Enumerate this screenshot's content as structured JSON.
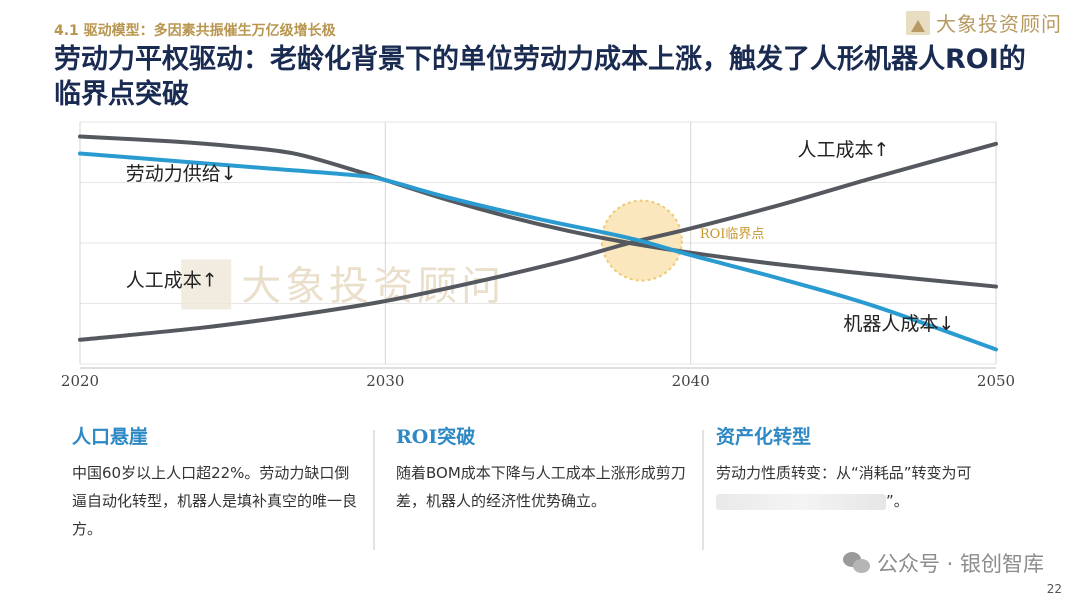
{
  "header": {
    "section_tag": "4.1 驱动模型：多因素共振催生万亿级增长极",
    "title": "劳动力平权驱动：老龄化背景下的单位劳动力成本上涨，触发了人形机器人ROI的临界点突破",
    "logo_text": "大象投资顾问"
  },
  "chart_data": {
    "type": "line",
    "xlim": [
      2020,
      2050
    ],
    "x_ticks": [
      "2020",
      "2030",
      "2040",
      "2050"
    ],
    "ylim": [
      0,
      100
    ],
    "grid": "horizontal",
    "watermark": "大象投资顾问",
    "series": [
      {
        "name": "劳动力供给↓",
        "color": "#55595f",
        "points": [
          [
            2020,
            94
          ],
          [
            2023,
            92
          ],
          [
            2025,
            90
          ],
          [
            2027,
            87
          ],
          [
            2029,
            80
          ],
          [
            2030,
            76
          ],
          [
            2032,
            68
          ],
          [
            2034,
            61
          ],
          [
            2036,
            55
          ],
          [
            2038,
            50
          ],
          [
            2040,
            46
          ],
          [
            2043,
            41
          ],
          [
            2046,
            37
          ],
          [
            2050,
            32
          ]
        ]
      },
      {
        "name": "人工成本↑",
        "color": "#55595f",
        "points": [
          [
            2020,
            10
          ],
          [
            2024,
            15
          ],
          [
            2027,
            20
          ],
          [
            2030,
            26
          ],
          [
            2033,
            34
          ],
          [
            2036,
            43
          ],
          [
            2038,
            50
          ],
          [
            2040,
            56
          ],
          [
            2043,
            66
          ],
          [
            2046,
            77
          ],
          [
            2050,
            91
          ]
        ]
      },
      {
        "name": "机器人成本↓",
        "color": "#2a9bd0",
        "points": [
          [
            2020,
            87
          ],
          [
            2023,
            84
          ],
          [
            2026,
            81
          ],
          [
            2029,
            78
          ],
          [
            2030,
            76
          ],
          [
            2032,
            69
          ],
          [
            2035,
            60
          ],
          [
            2038,
            52
          ],
          [
            2040,
            45
          ],
          [
            2043,
            35
          ],
          [
            2046,
            24
          ],
          [
            2050,
            6
          ]
        ]
      }
    ],
    "annotations": [
      {
        "text": "劳动力供给↓",
        "x": 2021.5,
        "y": 76
      },
      {
        "text": "人工成本↑",
        "x": 2021.5,
        "y": 32
      },
      {
        "text": "人工成本↑",
        "x": 2043.5,
        "y": 86
      },
      {
        "text": "机器人成本↓",
        "x": 2045,
        "y": 14
      },
      {
        "text": "ROI临界点",
        "x": 2040.3,
        "y": 52
      }
    ],
    "critical_point": {
      "label": "ROI临界点",
      "x": 2038.4,
      "y": 51
    }
  },
  "columns": [
    {
      "heading": "人口悬崖",
      "text": "中国60岁以上人口超22%。劳动力缺口倒逼自动化转型，机器人是填补真空的唯一良方。"
    },
    {
      "heading": "ROI突破",
      "text": "随着BOM成本下降与人工成本上涨形成剪刀差，机器人的经济性优势确立。"
    },
    {
      "heading": "资产化转型",
      "text_start": "劳动力性质转变：从“消耗品”转变为可",
      "text_end": "”。"
    }
  ],
  "footer": {
    "watermark": "公众号 · 银创智库",
    "page_number": "22"
  },
  "colors": {
    "title": "#1a2b52",
    "accent_gold": "#b8964f",
    "accent_blue": "#2d88c4",
    "line_gray": "#55595f",
    "line_blue": "#2a9bd0"
  }
}
